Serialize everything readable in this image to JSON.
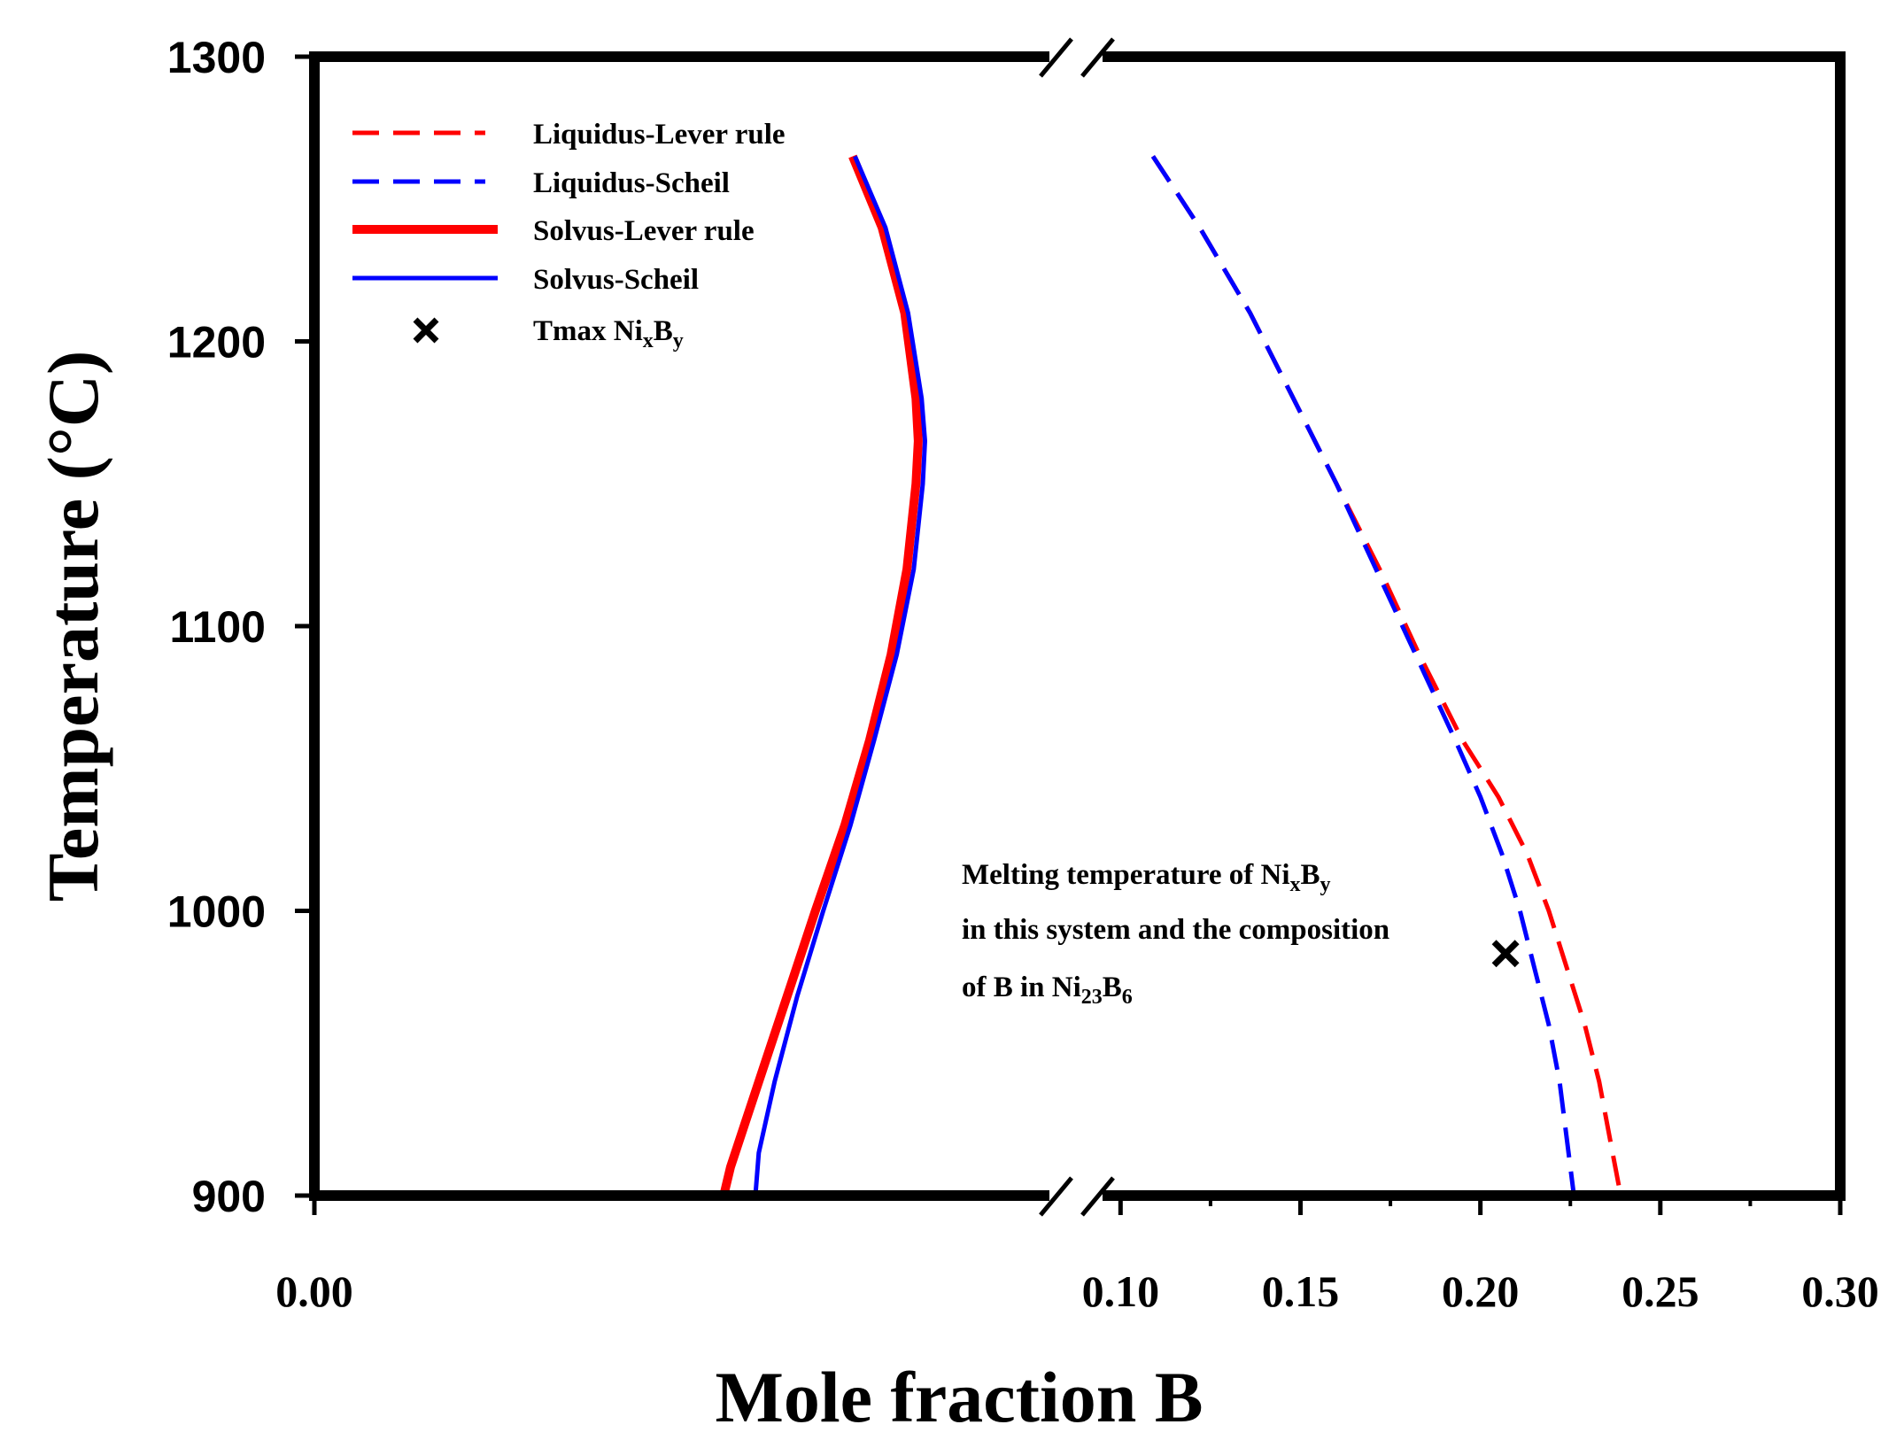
{
  "chart_data": {
    "type": "line",
    "title": "",
    "xlabel": "Mole fraction B",
    "ylabel": "Temperature (°C)",
    "ylim": [
      900,
      1300
    ],
    "xlim_left": [
      0.0,
      0.065
    ],
    "xlim_right": [
      0.095,
      0.3
    ],
    "xbreak": true,
    "yticks": [
      "900",
      "1000",
      "1100",
      "1200",
      "1300"
    ],
    "xticks_left": [
      "0.00"
    ],
    "xticks_right": [
      "0.10",
      "0.15",
      "0.20",
      "0.25",
      "0.30"
    ],
    "legend": [
      {
        "label": "Liquidus-Lever rule",
        "color": "#ff0000",
        "style": "dashed"
      },
      {
        "label": "Liquidus-Scheil",
        "color": "#0000ff",
        "style": "dashed"
      },
      {
        "label": "Solvus-Lever rule",
        "color": "#ff0000",
        "style": "solid-thick"
      },
      {
        "label": "Solvus-Scheil",
        "color": "#0000ff",
        "style": "solid"
      },
      {
        "label_main": "Tmax Ni",
        "sub1": "x",
        "mid": "B",
        "sub2": "y",
        "marker": "x"
      }
    ],
    "series": [
      {
        "name": "Liquidus-Lever rule",
        "color": "#ff0000",
        "dash": true,
        "points": [
          [
            0.109,
            1265
          ],
          [
            0.122,
            1240
          ],
          [
            0.136,
            1210
          ],
          [
            0.148,
            1180
          ],
          [
            0.16,
            1150
          ],
          [
            0.172,
            1120
          ],
          [
            0.183,
            1090
          ],
          [
            0.195,
            1060
          ],
          [
            0.205,
            1040
          ],
          [
            0.213,
            1020
          ],
          [
            0.219,
            1000
          ],
          [
            0.224,
            980
          ],
          [
            0.229,
            960
          ],
          [
            0.233,
            940
          ],
          [
            0.236,
            920
          ],
          [
            0.239,
            900
          ]
        ]
      },
      {
        "name": "Liquidus-Scheil",
        "color": "#0000ff",
        "dash": true,
        "points": [
          [
            0.109,
            1265
          ],
          [
            0.122,
            1240
          ],
          [
            0.136,
            1210
          ],
          [
            0.148,
            1180
          ],
          [
            0.16,
            1150
          ],
          [
            0.171,
            1120
          ],
          [
            0.182,
            1090
          ],
          [
            0.193,
            1060
          ],
          [
            0.2,
            1040
          ],
          [
            0.206,
            1020
          ],
          [
            0.211,
            1000
          ],
          [
            0.215,
            980
          ],
          [
            0.219,
            960
          ],
          [
            0.222,
            940
          ],
          [
            0.224,
            920
          ],
          [
            0.226,
            900
          ]
        ]
      },
      {
        "name": "Solvus-Lever rule",
        "color": "#ff0000",
        "dash": false,
        "width": 10,
        "points": [
          [
            0.0476,
            1265
          ],
          [
            0.0502,
            1240
          ],
          [
            0.0522,
            1210
          ],
          [
            0.0532,
            1180
          ],
          [
            0.0534,
            1165
          ],
          [
            0.0532,
            1150
          ],
          [
            0.0524,
            1120
          ],
          [
            0.051,
            1090
          ],
          [
            0.0491,
            1060
          ],
          [
            0.0469,
            1030
          ],
          [
            0.0443,
            1000
          ],
          [
            0.0418,
            970
          ],
          [
            0.0393,
            940
          ],
          [
            0.0368,
            910
          ],
          [
            0.0362,
            900
          ]
        ]
      },
      {
        "name": "Solvus-Scheil",
        "color": "#0000ff",
        "dash": false,
        "width": 5,
        "points": [
          [
            0.0478,
            1265
          ],
          [
            0.0505,
            1240
          ],
          [
            0.0525,
            1210
          ],
          [
            0.0537,
            1180
          ],
          [
            0.054,
            1165
          ],
          [
            0.0538,
            1150
          ],
          [
            0.053,
            1120
          ],
          [
            0.0515,
            1090
          ],
          [
            0.0495,
            1060
          ],
          [
            0.0474,
            1030
          ],
          [
            0.045,
            1000
          ],
          [
            0.0427,
            970
          ],
          [
            0.0407,
            940
          ],
          [
            0.0393,
            915
          ],
          [
            0.039,
            900
          ]
        ]
      }
    ],
    "marker_point": {
      "x": 0.207,
      "y": 985
    },
    "annotation": {
      "line1_pre": "Melting temperature of Ni",
      "line1_sub1": "x",
      "line1_mid": "B",
      "line1_sub2": "y",
      "line2": "in this system and the composition",
      "line3_pre": "of B in Ni",
      "line3_sub1": "23",
      "line3_mid": "B",
      "line3_sub2": "6"
    },
    "legend_position": "top-left"
  }
}
